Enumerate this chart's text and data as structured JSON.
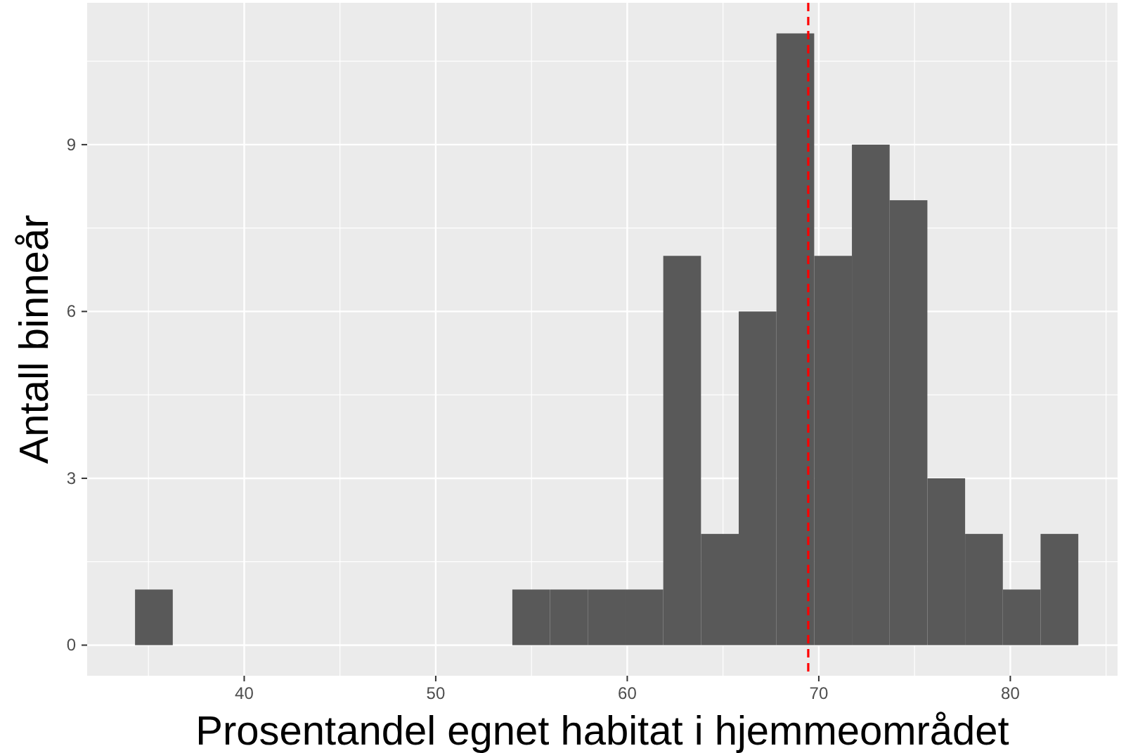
{
  "chart_data": {
    "type": "histogram",
    "xlabel": "Prosentandel egnet habitat i hjemmeområdet",
    "ylabel": "Antall binneår",
    "bins": [
      34.3,
      36.27,
      38.24,
      40.21,
      42.18,
      44.15,
      46.12,
      48.09,
      50.06,
      52.03,
      54.0,
      55.97,
      57.94,
      59.91,
      61.88,
      63.85,
      65.82,
      67.79,
      69.76,
      71.73,
      73.7,
      75.67,
      77.64,
      79.61,
      81.58,
      83.55
    ],
    "values": [
      1,
      0,
      0,
      0,
      0,
      0,
      0,
      0,
      0,
      0,
      1,
      1,
      1,
      1,
      7,
      2,
      6,
      11,
      7,
      9,
      8,
      3,
      2,
      1,
      2
    ],
    "color": "#595959",
    "xlim": [
      31.8,
      85.6
    ],
    "xticks": [
      40,
      50,
      60,
      70,
      80
    ],
    "ylim": [
      -0.55,
      11.55
    ],
    "yticks": [
      0,
      3,
      6,
      9
    ],
    "grid": true,
    "ref_lines": [
      {
        "axis": "x",
        "value": 69.45,
        "color": "#ff0000",
        "line_style": "dashed"
      }
    ]
  }
}
